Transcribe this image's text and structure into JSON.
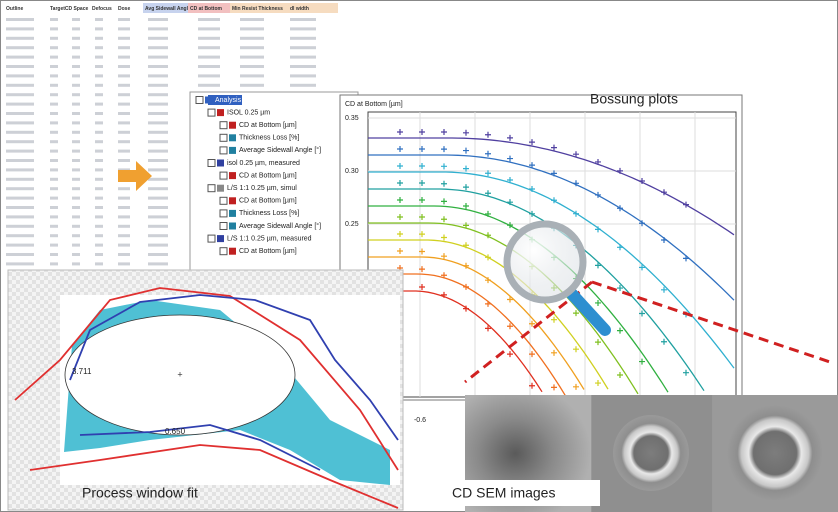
{
  "table": {
    "headers": [
      "Outline",
      "TargetCD Space",
      "Defocus",
      "Dose",
      "Avg Sidewall Angle",
      "CD at Bottom",
      "Min Resist Thickness",
      "dl width"
    ]
  },
  "tree": {
    "items": [
      "Analysis",
      "ISOL 0.25 µm",
      "CD at Bottom [µm]",
      "Thickness Loss [%]",
      "Average Sidewall Angle [°]",
      "isol 0.25 µm, measured",
      "CD at Bottom [µm]",
      "L/S 1:1 0.25 µm, simul",
      "CD at Bottom [µm]",
      "Thickness Loss [%]",
      "Average Sidewall Angle [°]",
      "L/S 1:1 0.25 µm, measured",
      "CD at Bottom [µm]"
    ]
  },
  "bossung": {
    "label": "Bossung plots",
    "axis_title": "CD at Bottom [µm]",
    "yticks": [
      "0.35",
      "0.30",
      "0.25"
    ],
    "xticks": [
      "-0.6"
    ]
  },
  "process_window": {
    "label": "Process window fit",
    "annotations": [
      "3.711",
      "0.650"
    ]
  },
  "sem": {
    "label": "CD SEM images"
  }
}
